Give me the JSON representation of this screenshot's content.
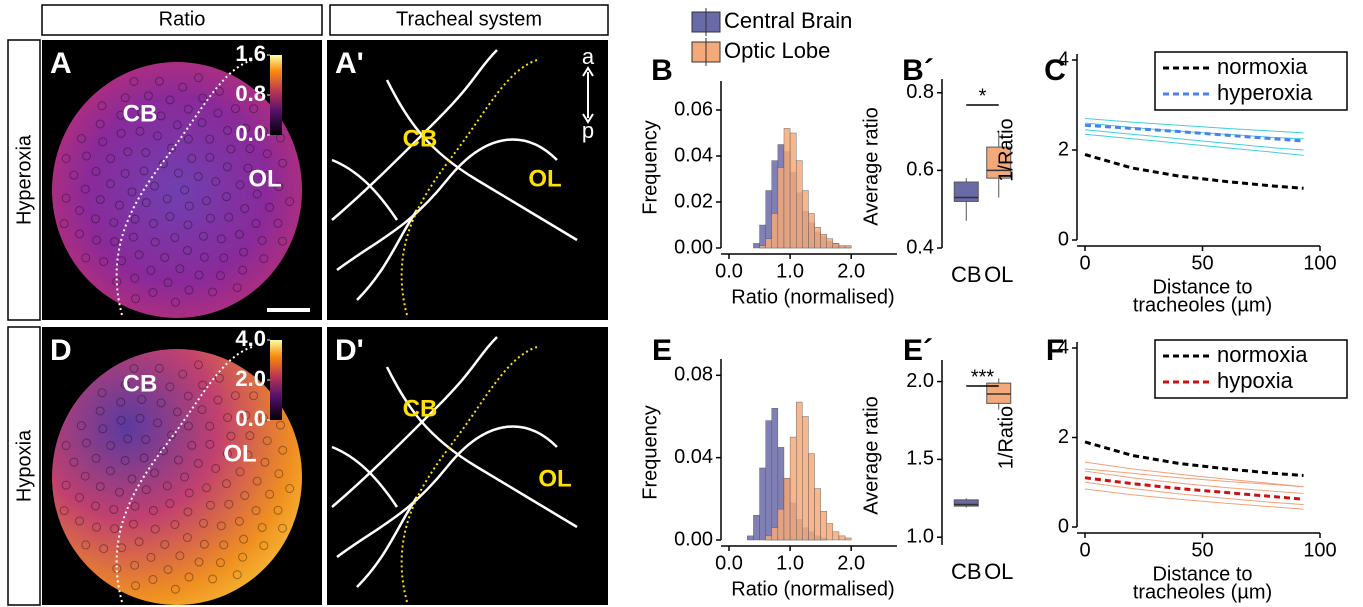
{
  "columns": [
    "Ratio",
    "Tracheal system"
  ],
  "rows": [
    "Hyperoxia",
    "Hypoxia"
  ],
  "images": [
    {
      "letter": "A",
      "labels": [
        "CB",
        "OL"
      ],
      "clim": [
        0,
        1.6
      ],
      "cticks": [
        1.6,
        0.8,
        {
          "value": 0,
          "label": "0.0"
        }
      ]
    },
    {
      "letter": "A'",
      "labels": [
        "CB",
        "OL"
      ],
      "axis": [
        "a",
        "p"
      ]
    },
    {
      "letter": "D",
      "labels": [
        "CB",
        "OL"
      ],
      "clim": [
        0,
        4
      ],
      "cticks": [
        {
          "value": 4,
          "label": "4.0"
        },
        {
          "value": 2,
          "label": "2.0"
        },
        {
          "value": 0,
          "label": "0.0"
        }
      ]
    },
    {
      "letter": "D'",
      "labels": [
        "CB",
        "OL"
      ]
    }
  ],
  "chart_data": [
    {
      "type": "histogram",
      "label": "B",
      "ylabel": "Frequency",
      "xlabel": "Ratio (normalised)",
      "legend": "top",
      "bins": [
        0.2,
        0.3,
        0.4,
        0.5,
        0.6,
        0.7,
        0.8,
        0.9,
        1.0,
        1.1,
        1.2,
        1.3,
        1.4,
        1.5,
        1.6,
        1.7,
        1.8,
        1.9,
        2.0,
        2.1,
        2.2
      ],
      "xlim": [
        0,
        2.75
      ],
      "xticks": [
        {
          "value": 0,
          "label": "0.0"
        },
        {
          "value": 1,
          "label": "1.0"
        },
        {
          "value": 2,
          "label": "2.0"
        }
      ],
      "ylim": [
        0,
        0.07
      ],
      "yticks": [
        {
          "value": 0,
          "label": "0.00"
        },
        0.02,
        0.04,
        0.06
      ],
      "series": [
        {
          "name": "Central Brain",
          "color": "#6a6aa8",
          "values": [
            0,
            0,
            0.002,
            0.01,
            0.025,
            0.038,
            0.045,
            0.042,
            0.033,
            0.024,
            0.016,
            0.011,
            0.007,
            0.005,
            0.003,
            0.002,
            0.001,
            0.001,
            0,
            0
          ]
        },
        {
          "name": "Optic Lobe",
          "color": "#f4a97a",
          "values": [
            0,
            0,
            0,
            0.001,
            0.004,
            0.015,
            0.035,
            0.052,
            0.05,
            0.038,
            0.025,
            0.015,
            0.009,
            0.006,
            0.004,
            0.002,
            0.001,
            0.001,
            0,
            0
          ]
        }
      ]
    },
    {
      "type": "box",
      "label": "B´",
      "ylabel": "Average ratio",
      "significance": "*",
      "categories": [
        "CB",
        "OL"
      ],
      "colors": [
        "#6a6aa8",
        "#f4a97a"
      ],
      "ylim": [
        0.4,
        0.82
      ],
      "yticks": [
        0.4,
        0.6,
        0.8
      ],
      "boxes": [
        {
          "min": 0.47,
          "q1": 0.52,
          "median": 0.53,
          "q3": 0.57,
          "max": 0.58
        },
        {
          "min": 0.53,
          "q1": 0.58,
          "median": 0.6,
          "q3": 0.66,
          "max": 0.7
        }
      ]
    },
    {
      "type": "line",
      "label": "C",
      "ylabel": "1/Ratio",
      "xlabel": [
        "Distance to",
        "tracheoles (µm)"
      ],
      "xlim": [
        0,
        100
      ],
      "xticks": [
        0,
        50,
        100
      ],
      "ylim": [
        0,
        4
      ],
      "yticks": [
        0,
        2,
        4
      ],
      "x": [
        0,
        20,
        40,
        60,
        80,
        93
      ],
      "samples_color": "#40d0e0",
      "samples": [
        [
          2.7,
          2.62,
          2.55,
          2.48,
          2.42,
          2.38
        ],
        [
          2.45,
          2.35,
          2.25,
          2.15,
          2.05,
          2.0
        ],
        [
          2.6,
          2.5,
          2.42,
          2.35,
          2.28,
          2.25
        ],
        [
          2.35,
          2.25,
          2.15,
          2.05,
          1.95,
          1.88
        ]
      ],
      "series": [
        {
          "name": "normoxia",
          "color": "#000000",
          "dash": true,
          "values": [
            1.9,
            1.6,
            1.42,
            1.3,
            1.2,
            1.15
          ]
        },
        {
          "name": "hyperoxia",
          "color": "#4a80f0",
          "dash": true,
          "values": [
            2.55,
            2.48,
            2.41,
            2.33,
            2.25,
            2.2
          ]
        }
      ]
    },
    {
      "type": "histogram",
      "label": "E",
      "ylabel": "Frequency",
      "xlabel": "Ratio (normalised)",
      "bins": [
        0.2,
        0.3,
        0.4,
        0.5,
        0.6,
        0.7,
        0.8,
        0.9,
        1.0,
        1.1,
        1.2,
        1.3,
        1.4,
        1.5,
        1.6,
        1.7,
        1.8,
        1.9,
        2.0,
        2.1,
        2.2
      ],
      "xlim": [
        0,
        2.75
      ],
      "xticks": [
        {
          "value": 0,
          "label": "0.0"
        },
        {
          "value": 1,
          "label": "1.0"
        },
        {
          "value": 2,
          "label": "2.0"
        }
      ],
      "ylim": [
        0,
        0.085
      ],
      "yticks": [
        {
          "value": 0,
          "label": "0.00"
        },
        0.04,
        0.08
      ],
      "series": [
        {
          "name": "Central Brain",
          "color": "#6a6aa8",
          "values": [
            0,
            0.002,
            0.012,
            0.035,
            0.058,
            0.064,
            0.045,
            0.03,
            0.018,
            0.01,
            0.006,
            0.004,
            0.002,
            0.001,
            0,
            0,
            0,
            0,
            0,
            0
          ]
        },
        {
          "name": "Optic Lobe",
          "color": "#f4a97a",
          "values": [
            0,
            0,
            0,
            0,
            0.002,
            0.006,
            0.015,
            0.03,
            0.05,
            0.067,
            0.06,
            0.042,
            0.025,
            0.014,
            0.008,
            0.004,
            0.002,
            0.001,
            0,
            0
          ]
        }
      ]
    },
    {
      "type": "box",
      "label": "E´",
      "ylabel": "Average ratio",
      "significance": "***",
      "categories": [
        "CB",
        "OL"
      ],
      "colors": [
        "#6a6aa8",
        "#f4a97a"
      ],
      "ylim": [
        0.95,
        2.1
      ],
      "yticks": [
        {
          "value": 1,
          "label": "1.0"
        },
        {
          "value": 1.5,
          "label": "1.5"
        },
        {
          "value": 2,
          "label": "2.0"
        }
      ],
      "boxes": [
        {
          "min": 1.19,
          "q1": 1.2,
          "median": 1.21,
          "q3": 1.24,
          "max": 1.25
        },
        {
          "min": 1.82,
          "q1": 1.86,
          "median": 1.92,
          "q3": 1.99,
          "max": 2.02
        }
      ]
    },
    {
      "type": "line",
      "label": "F",
      "ylabel": "1/Ratio",
      "xlabel": [
        "Distance to",
        "tracheoles (µm)"
      ],
      "xlim": [
        0,
        100
      ],
      "xticks": [
        0,
        50,
        100
      ],
      "ylim": [
        0,
        4
      ],
      "yticks": [
        0,
        2,
        4
      ],
      "x": [
        0,
        20,
        40,
        60,
        80,
        93
      ],
      "samples_color": "#f4a07a",
      "samples": [
        [
          1.45,
          1.3,
          1.18,
          1.07,
          0.97,
          0.9
        ],
        [
          1.25,
          1.1,
          0.98,
          0.88,
          0.8,
          0.75
        ],
        [
          1.0,
          0.86,
          0.74,
          0.64,
          0.55,
          0.5
        ],
        [
          0.85,
          0.72,
          0.62,
          0.53,
          0.45,
          0.4
        ],
        [
          1.3,
          1.2,
          1.1,
          1.02,
          0.95,
          0.9
        ]
      ],
      "series": [
        {
          "name": "normoxia",
          "color": "#000000",
          "dash": true,
          "values": [
            1.9,
            1.6,
            1.42,
            1.3,
            1.2,
            1.15
          ]
        },
        {
          "name": "hypoxia",
          "color": "#cc1111",
          "dash": true,
          "values": [
            1.1,
            0.97,
            0.86,
            0.77,
            0.68,
            0.62
          ]
        }
      ]
    }
  ]
}
